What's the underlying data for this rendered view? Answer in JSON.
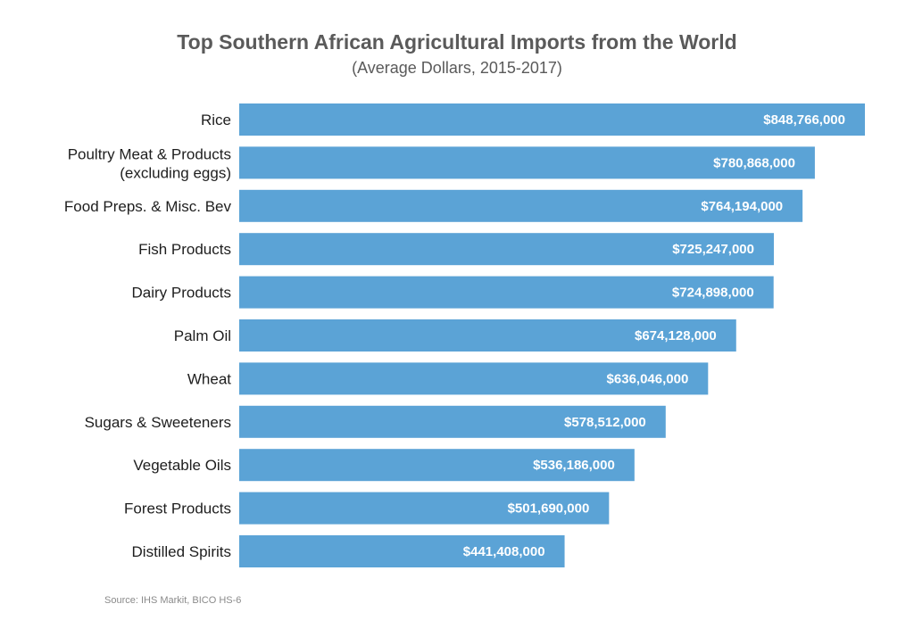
{
  "colors": {
    "bar": "#5ba3d6",
    "title": "#5a5a5a",
    "label": "#1e1e1e",
    "value_text": "#ffffff",
    "source": "#8a8a8a"
  },
  "chart_data": {
    "type": "bar",
    "orientation": "horizontal",
    "title": "Top Southern African Agricultural Imports from the World",
    "subtitle": "(Average Dollars, 2015-2017)",
    "categories": [
      "Rice",
      [
        "Poultry Meat & Products",
        "(excluding eggs)"
      ],
      "Food Preps. & Misc. Bev",
      "Fish Products",
      "Dairy Products",
      "Palm Oil",
      "Wheat",
      "Sugars & Sweeteners",
      "Vegetable Oils",
      "Forest Products",
      "Distilled Spirits"
    ],
    "values": [
      848766000,
      780868000,
      764194000,
      725247000,
      724898000,
      674128000,
      636046000,
      578512000,
      536186000,
      501690000,
      441408000
    ],
    "value_labels": [
      "$848,766,000",
      "$780,868,000",
      "$764,194,000",
      "$725,247,000",
      "$724,898,000",
      "$674,128,000",
      "$636,046,000",
      "$578,512,000",
      "$536,186,000",
      "$501,690,000",
      "$441,408,000"
    ],
    "xlim": [
      0,
      848766000
    ],
    "grid": false,
    "legend": "none"
  },
  "source": "Source: IHS Markit, BICO HS-6"
}
